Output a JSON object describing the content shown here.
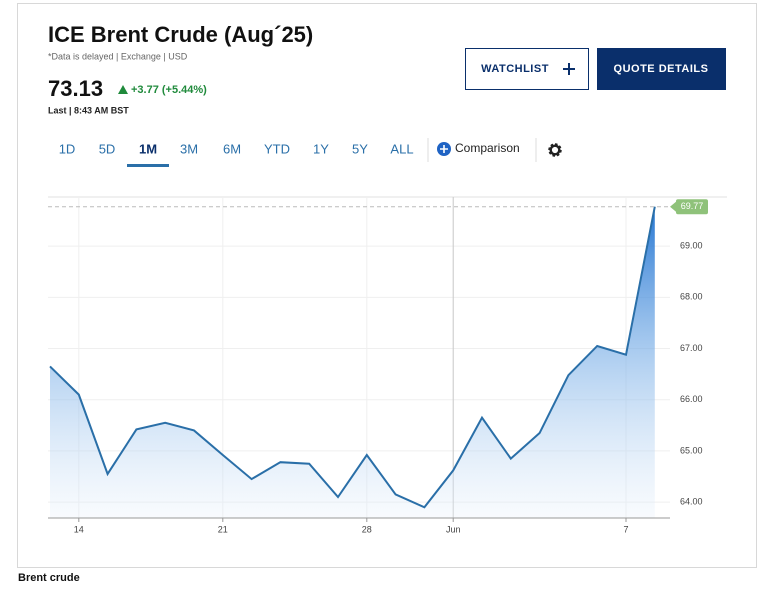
{
  "header": {
    "title": "ICE Brent Crude (Aug´25)",
    "note": "*Data is delayed | Exchange | USD",
    "price": "73.13",
    "change": "+3.77 (+5.44%)",
    "last": "Last | 8:43 AM BST"
  },
  "buttons": [
    "WATCHLIST",
    "QUOTE DETAILS"
  ],
  "tabs": [
    "1D",
    "5D",
    "1M",
    "3M",
    "6M",
    "YTD",
    "1Y",
    "5Y",
    "ALL"
  ],
  "active_tab": 2,
  "comparison": "Comparison",
  "chart_data": {
    "type": "line",
    "categories": [
      null,
      "14",
      null,
      null,
      null,
      null,
      "21",
      null,
      null,
      null,
      null,
      "28",
      null,
      null,
      "Jun",
      null,
      null,
      null,
      null,
      null,
      "7",
      null
    ],
    "values": [
      66.65,
      66.1,
      64.55,
      65.42,
      65.55,
      65.4,
      64.92,
      64.45,
      64.78,
      64.75,
      64.1,
      64.92,
      64.15,
      63.9,
      64.62,
      65.65,
      64.85,
      65.35,
      66.48,
      67.05,
      66.88,
      69.77
    ],
    "color": "#2a6fa8",
    "last_label": "69.77",
    "ylim": [
      63.69,
      69.96
    ],
    "yticks": [
      {
        "value": 64,
        "label": "64.00"
      },
      {
        "value": 65,
        "label": "65.00"
      },
      {
        "value": 66,
        "label": "66.00"
      },
      {
        "value": 67,
        "label": "67.00"
      },
      {
        "value": 68,
        "label": "68.00"
      },
      {
        "value": 69,
        "label": "69.00"
      }
    ],
    "grid": true
  },
  "caption": "Brent crude"
}
